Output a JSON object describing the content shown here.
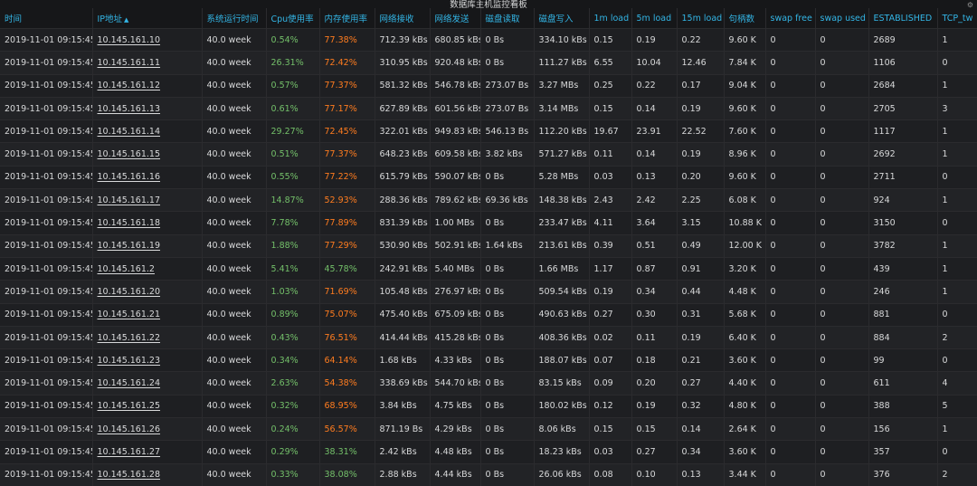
{
  "panel": {
    "title": "数据库主机监控看板"
  },
  "columns": [
    "时间",
    "IP地址",
    "系统运行时间",
    "Cpu使用率",
    "内存使用率",
    "网络接收",
    "网络发送",
    "磁盘读取",
    "磁盘写入",
    "1m load",
    "5m load",
    "15m load",
    "句柄数",
    "swap free",
    "swap used",
    "ESTABLISHED",
    "TCP_tw"
  ],
  "sort_column": "IP地址",
  "colors": {
    "header": "#33b5e5",
    "green": "#73bf69",
    "orange": "#ff7c1f",
    "background": "#161719"
  },
  "rows": [
    [
      "2019-11-01 09:15:45",
      "10.145.161.10",
      "40.0 week",
      "0.54%",
      "77.38%",
      "712.39 kBs",
      "680.85 kBs",
      "0 Bs",
      "334.10 kBs",
      "0.15",
      "0.19",
      "0.22",
      "9.60 K",
      "0",
      "0",
      "2689",
      "1"
    ],
    [
      "2019-11-01 09:15:45",
      "10.145.161.11",
      "40.0 week",
      "26.31%",
      "72.42%",
      "310.95 kBs",
      "920.48 kBs",
      "0 Bs",
      "111.27 kBs",
      "6.55",
      "10.04",
      "12.46",
      "7.84 K",
      "0",
      "0",
      "1106",
      "0"
    ],
    [
      "2019-11-01 09:15:45",
      "10.145.161.12",
      "40.0 week",
      "0.57%",
      "77.37%",
      "581.32 kBs",
      "546.78 kBs",
      "273.07 Bs",
      "3.27 MBs",
      "0.25",
      "0.22",
      "0.17",
      "9.04 K",
      "0",
      "0",
      "2684",
      "1"
    ],
    [
      "2019-11-01 09:15:45",
      "10.145.161.13",
      "40.0 week",
      "0.61%",
      "77.17%",
      "627.89 kBs",
      "601.56 kBs",
      "273.07 Bs",
      "3.14 MBs",
      "0.15",
      "0.14",
      "0.19",
      "9.60 K",
      "0",
      "0",
      "2705",
      "3"
    ],
    [
      "2019-11-01 09:15:45",
      "10.145.161.14",
      "40.0 week",
      "29.27%",
      "72.45%",
      "322.01 kBs",
      "949.83 kBs",
      "546.13 Bs",
      "112.20 kBs",
      "19.67",
      "23.91",
      "22.52",
      "7.60 K",
      "0",
      "0",
      "1117",
      "1"
    ],
    [
      "2019-11-01 09:15:45",
      "10.145.161.15",
      "40.0 week",
      "0.51%",
      "77.37%",
      "648.23 kBs",
      "609.58 kBs",
      "3.82 kBs",
      "571.27 kBs",
      "0.11",
      "0.14",
      "0.19",
      "8.96 K",
      "0",
      "0",
      "2692",
      "1"
    ],
    [
      "2019-11-01 09:15:45",
      "10.145.161.16",
      "40.0 week",
      "0.55%",
      "77.22%",
      "615.79 kBs",
      "590.07 kBs",
      "0 Bs",
      "5.28 MBs",
      "0.03",
      "0.13",
      "0.20",
      "9.60 K",
      "0",
      "0",
      "2711",
      "0"
    ],
    [
      "2019-11-01 09:15:45",
      "10.145.161.17",
      "40.0 week",
      "14.87%",
      "52.93%",
      "288.36 kBs",
      "789.62 kBs",
      "69.36 kBs",
      "148.38 kBs",
      "2.43",
      "2.42",
      "2.25",
      "6.08 K",
      "0",
      "0",
      "924",
      "1"
    ],
    [
      "2019-11-01 09:15:45",
      "10.145.161.18",
      "40.0 week",
      "7.78%",
      "77.89%",
      "831.39 kBs",
      "1.00 MBs",
      "0 Bs",
      "233.47 kBs",
      "4.11",
      "3.64",
      "3.15",
      "10.88 K",
      "0",
      "0",
      "3150",
      "0"
    ],
    [
      "2019-11-01 09:15:45",
      "10.145.161.19",
      "40.0 week",
      "1.88%",
      "77.29%",
      "530.90 kBs",
      "502.91 kBs",
      "1.64 kBs",
      "213.61 kBs",
      "0.39",
      "0.51",
      "0.49",
      "12.00 K",
      "0",
      "0",
      "3782",
      "1"
    ],
    [
      "2019-11-01 09:15:45",
      "10.145.161.2",
      "40.0 week",
      "5.41%",
      "45.78%",
      "242.91 kBs",
      "5.40 MBs",
      "0 Bs",
      "1.66 MBs",
      "1.17",
      "0.87",
      "0.91",
      "3.20 K",
      "0",
      "0",
      "439",
      "1"
    ],
    [
      "2019-11-01 09:15:45",
      "10.145.161.20",
      "40.0 week",
      "1.03%",
      "71.69%",
      "105.48 kBs",
      "276.97 kBs",
      "0 Bs",
      "509.54 kBs",
      "0.19",
      "0.34",
      "0.44",
      "4.48 K",
      "0",
      "0",
      "246",
      "1"
    ],
    [
      "2019-11-01 09:15:45",
      "10.145.161.21",
      "40.0 week",
      "0.89%",
      "75.07%",
      "475.40 kBs",
      "675.09 kBs",
      "0 Bs",
      "490.63 kBs",
      "0.27",
      "0.30",
      "0.31",
      "5.68 K",
      "0",
      "0",
      "881",
      "0"
    ],
    [
      "2019-11-01 09:15:45",
      "10.145.161.22",
      "40.0 week",
      "0.43%",
      "76.51%",
      "414.44 kBs",
      "415.28 kBs",
      "0 Bs",
      "408.36 kBs",
      "0.02",
      "0.11",
      "0.19",
      "6.40 K",
      "0",
      "0",
      "884",
      "2"
    ],
    [
      "2019-11-01 09:15:45",
      "10.145.161.23",
      "40.0 week",
      "0.34%",
      "64.14%",
      "1.68 kBs",
      "4.33 kBs",
      "0 Bs",
      "188.07 kBs",
      "0.07",
      "0.18",
      "0.21",
      "3.60 K",
      "0",
      "0",
      "99",
      "0"
    ],
    [
      "2019-11-01 09:15:45",
      "10.145.161.24",
      "40.0 week",
      "2.63%",
      "54.38%",
      "338.69 kBs",
      "544.70 kBs",
      "0 Bs",
      "83.15 kBs",
      "0.09",
      "0.20",
      "0.27",
      "4.40 K",
      "0",
      "0",
      "611",
      "4"
    ],
    [
      "2019-11-01 09:15:45",
      "10.145.161.25",
      "40.0 week",
      "0.32%",
      "68.95%",
      "3.84 kBs",
      "4.75 kBs",
      "0 Bs",
      "180.02 kBs",
      "0.12",
      "0.19",
      "0.32",
      "4.80 K",
      "0",
      "0",
      "388",
      "5"
    ],
    [
      "2019-11-01 09:15:45",
      "10.145.161.26",
      "40.0 week",
      "0.24%",
      "56.57%",
      "871.19 Bs",
      "4.29 kBs",
      "0 Bs",
      "8.06 kBs",
      "0.15",
      "0.15",
      "0.14",
      "2.64 K",
      "0",
      "0",
      "156",
      "1"
    ],
    [
      "2019-11-01 09:15:45",
      "10.145.161.27",
      "40.0 week",
      "0.29%",
      "38.31%",
      "2.42 kBs",
      "4.48 kBs",
      "0 Bs",
      "18.23 kBs",
      "0.03",
      "0.27",
      "0.34",
      "3.60 K",
      "0",
      "0",
      "357",
      "0"
    ],
    [
      "2019-11-01 09:15:45",
      "10.145.161.28",
      "40.0 week",
      "0.33%",
      "38.08%",
      "2.88 kBs",
      "4.44 kBs",
      "0 Bs",
      "26.06 kBs",
      "0.08",
      "0.10",
      "0.13",
      "3.44 K",
      "0",
      "0",
      "376",
      "2"
    ]
  ]
}
